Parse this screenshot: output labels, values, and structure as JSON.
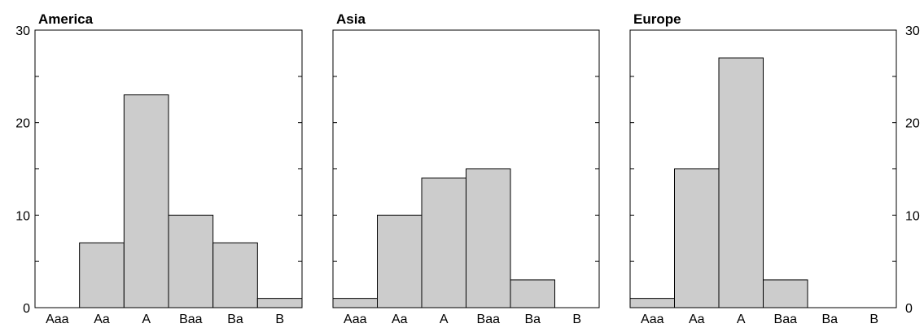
{
  "chart_data": [
    {
      "type": "bar",
      "title": "America",
      "categories": [
        "Aaa",
        "Aa",
        "A",
        "Baa",
        "Ba",
        "B"
      ],
      "values": [
        0,
        7,
        23,
        10,
        7,
        1
      ],
      "ylim": [
        0,
        30
      ],
      "yticks": [
        0,
        10,
        20,
        30
      ],
      "ytick_labels": [
        "0",
        "10",
        "20",
        "30"
      ],
      "ytick_side": "left"
    },
    {
      "type": "bar",
      "title": "Asia",
      "categories": [
        "Aaa",
        "Aa",
        "A",
        "Baa",
        "Ba",
        "B"
      ],
      "values": [
        1,
        10,
        14,
        15,
        3,
        0
      ],
      "ylim": [
        0,
        30
      ],
      "yticks": [
        0,
        10,
        20,
        30
      ],
      "ytick_labels": [],
      "ytick_side": "none"
    },
    {
      "type": "bar",
      "title": "Europe",
      "categories": [
        "Aaa",
        "Aa",
        "A",
        "Baa",
        "Ba",
        "B"
      ],
      "values": [
        1,
        15,
        27,
        3,
        0,
        0
      ],
      "ylim": [
        0,
        30
      ],
      "yticks": [
        0,
        10,
        20,
        30
      ],
      "ytick_labels": [
        "0",
        "10",
        "20",
        "30"
      ],
      "ytick_side": "right"
    }
  ],
  "colors": {
    "bar_fill": "#cccccc",
    "bar_stroke": "#000000",
    "frame": "#000000"
  }
}
